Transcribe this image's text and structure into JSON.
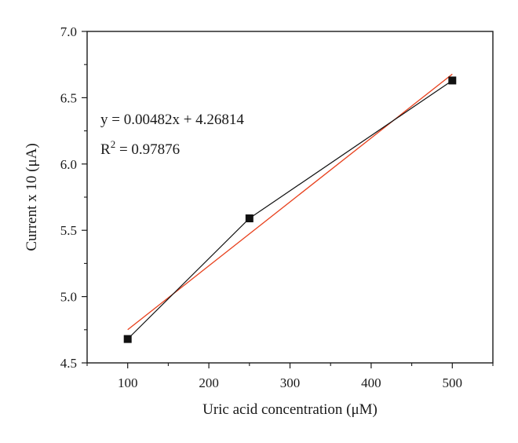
{
  "chart_data": {
    "type": "scatter",
    "title": "",
    "xlabel": "Uric acid concentration (μM)",
    "ylabel": "Current x 10 (μA)",
    "xlim": [
      50,
      550
    ],
    "ylim": [
      4.5,
      7.0
    ],
    "xticks": [
      100,
      200,
      300,
      400,
      500
    ],
    "xtick_labels": [
      "100",
      "200",
      "300",
      "400",
      "500"
    ],
    "yticks": [
      4.5,
      5.0,
      5.5,
      6.0,
      6.5,
      7.0
    ],
    "ytick_labels": [
      "4.5",
      "5.0",
      "5.5",
      "6.0",
      "6.5",
      "7.0"
    ],
    "grid": false,
    "series": [
      {
        "x": [
          100,
          250,
          500
        ],
        "y": [
          4.68,
          5.59,
          6.63
        ],
        "marker": "square",
        "connect": true,
        "color": "#111111"
      }
    ],
    "fit": {
      "slope": 0.00482,
      "intercept": 4.26814,
      "x_range": [
        100,
        500
      ],
      "color": "#e8401c"
    },
    "annotations": {
      "equation": "y = 0.00482x + 4.26814",
      "r2_prefix": "R",
      "r2_sup": "2",
      "r2_value": " = 0.97876"
    }
  }
}
